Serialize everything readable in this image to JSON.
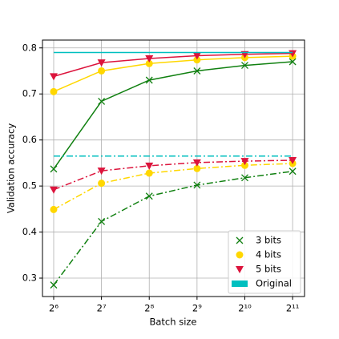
{
  "chart_data": {
    "type": "line",
    "xlabel": "Batch size",
    "ylabel": "Validation accuracy",
    "x": [
      64,
      128,
      256,
      512,
      1024,
      2048
    ],
    "xscale": "log2",
    "xlim": [
      54.4,
      2435
    ],
    "ylim": [
      0.26,
      0.817
    ],
    "xticks": [
      {
        "value": 64,
        "label": "2⁶"
      },
      {
        "value": 128,
        "label": "2⁷"
      },
      {
        "value": 256,
        "label": "2⁸"
      },
      {
        "value": 512,
        "label": "2⁹"
      },
      {
        "value": 1024,
        "label": "2¹⁰"
      },
      {
        "value": 2048,
        "label": "2¹¹"
      }
    ],
    "yticks": [
      0.3,
      0.4,
      0.5,
      0.6,
      0.7,
      0.8
    ],
    "grid": true,
    "legend": "lower right",
    "series": [
      {
        "name": "3 bits",
        "color": "#108010",
        "marker": "x",
        "values": [
          0.537,
          0.684,
          0.73,
          0.75,
          0.762,
          0.77
        ],
        "dashdot_values": [
          0.285,
          0.423,
          0.478,
          0.502,
          0.518,
          0.532
        ]
      },
      {
        "name": "4 bits",
        "color": "#ffd700",
        "marker": "circle",
        "values": [
          0.705,
          0.75,
          0.766,
          0.774,
          0.779,
          0.782
        ],
        "dashdot_values": [
          0.449,
          0.506,
          0.528,
          0.538,
          0.545,
          0.549
        ]
      },
      {
        "name": "5 bits",
        "color": "#dc143c",
        "marker": "triangle-down",
        "values": [
          0.738,
          0.768,
          0.777,
          0.783,
          0.786,
          0.788
        ],
        "dashdot_values": [
          0.492,
          0.533,
          0.544,
          0.551,
          0.554,
          0.556
        ]
      },
      {
        "name": "Original",
        "color": "#00bfbf",
        "values": [
          0.79,
          0.79,
          0.79,
          0.79,
          0.79,
          0.79
        ],
        "dashdot_values": [
          0.565,
          0.565,
          0.565,
          0.565,
          0.565,
          0.565
        ]
      }
    ]
  }
}
